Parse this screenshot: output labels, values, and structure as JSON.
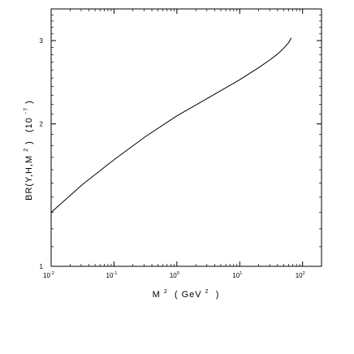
{
  "chart_data": {
    "type": "line",
    "title": "",
    "xlabel": {
      "base": "M",
      "exp": "2",
      "unit_open": " ( GeV",
      "unit_exp": "2",
      "unit_close": " )"
    },
    "ylabel": {
      "main": "BR(Υ,H,M",
      "exp": "2",
      "close": ")",
      "unit_open": "(10",
      "unit_exp": "-7",
      "unit_close": ")"
    },
    "x_scale": "log",
    "y_scale": "log",
    "xlim": [
      0.01,
      200
    ],
    "ylim": [
      1,
      3.5
    ],
    "x_ticks": [
      {
        "value": 0.01,
        "base": "10",
        "exp": "-2"
      },
      {
        "value": 0.1,
        "base": "10",
        "exp": "-1"
      },
      {
        "value": 1,
        "base": "10",
        "exp": "0"
      },
      {
        "value": 10,
        "base": "10",
        "exp": "1"
      },
      {
        "value": 100,
        "base": "10",
        "exp": "2"
      }
    ],
    "y_ticks": [
      {
        "value": 1,
        "label": "1"
      },
      {
        "value": 2,
        "label": "2"
      },
      {
        "value": 3,
        "label": "3"
      }
    ],
    "grid": false,
    "legend": "none",
    "series": [
      {
        "x": [
          0.01,
          0.0316,
          0.1,
          0.316,
          1,
          3.16,
          10,
          20,
          30,
          40,
          50,
          60,
          66
        ],
        "y": [
          1.3,
          1.49,
          1.68,
          1.88,
          2.08,
          2.27,
          2.48,
          2.63,
          2.73,
          2.81,
          2.89,
          2.97,
          3.04
        ]
      }
    ],
    "colors": {
      "line": "#000000",
      "axis": "#000000",
      "background": "#ffffff"
    }
  }
}
